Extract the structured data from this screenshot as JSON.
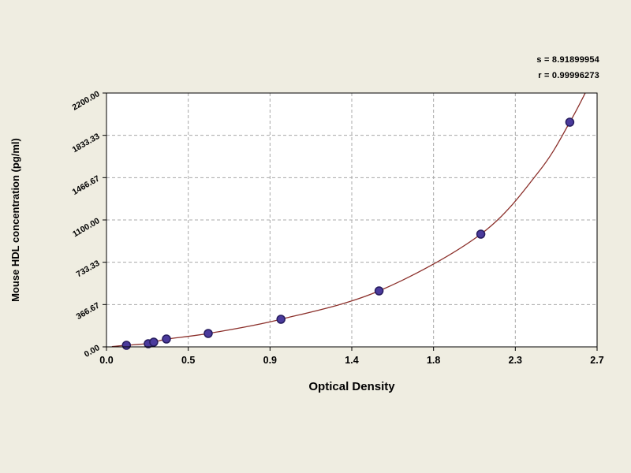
{
  "page": {
    "background": "#efede1"
  },
  "annotations": {
    "s_value": "s = 8.91899954",
    "r_value": "r = 0.99996273"
  },
  "chart_data": {
    "type": "scatter",
    "title": "",
    "xlabel": "Optical Density",
    "ylabel": "Mouse HDL concentration (pg/ml)",
    "xlim": [
      0,
      2.7
    ],
    "ylim": [
      0,
      2200
    ],
    "grid": "dashed",
    "legend": "none",
    "x_ticks": [
      {
        "value": 0,
        "label": "0.0"
      },
      {
        "value": 0.45,
        "label": "0.5"
      },
      {
        "value": 0.9,
        "label": "0.9"
      },
      {
        "value": 1.35,
        "label": "1.4"
      },
      {
        "value": 1.8,
        "label": "1.8"
      },
      {
        "value": 2.25,
        "label": "2.3"
      },
      {
        "value": 2.7,
        "label": "2.7"
      }
    ],
    "y_ticks": [
      {
        "value": 0,
        "label": "0.00"
      },
      {
        "value": 366.67,
        "label": "366.67"
      },
      {
        "value": 733.33,
        "label": "733.33"
      },
      {
        "value": 1100,
        "label": "1100.00"
      },
      {
        "value": 1466.67,
        "label": "1466.67"
      },
      {
        "value": 1833.33,
        "label": "1833.33"
      },
      {
        "value": 2200,
        "label": "2200.00"
      }
    ],
    "points": [
      [
        0.11,
        14
      ],
      [
        0.23,
        27
      ],
      [
        0.26,
        41
      ],
      [
        0.33,
        68
      ],
      [
        0.56,
        116
      ],
      [
        0.96,
        239
      ],
      [
        1.5,
        485
      ],
      [
        2.06,
        977
      ],
      [
        2.55,
        1947
      ]
    ],
    "fit_curve": [
      [
        0.03,
        3
      ],
      [
        0.11,
        14
      ],
      [
        0.23,
        30
      ],
      [
        0.33,
        66
      ],
      [
        0.56,
        116
      ],
      [
        0.96,
        239
      ],
      [
        1.5,
        485
      ],
      [
        2.06,
        977
      ],
      [
        2.38,
        1520
      ],
      [
        2.55,
        1947
      ],
      [
        2.66,
        2280
      ]
    ],
    "colors": {
      "page_bg": "#efede1",
      "plot_bg": "#ffffff",
      "grid": "#a8a8a8",
      "border": "#000000",
      "curve": "#8b2f2a",
      "marker": "#4a3a9c",
      "marker_edge": "#261c5e",
      "text": "#000000"
    }
  }
}
